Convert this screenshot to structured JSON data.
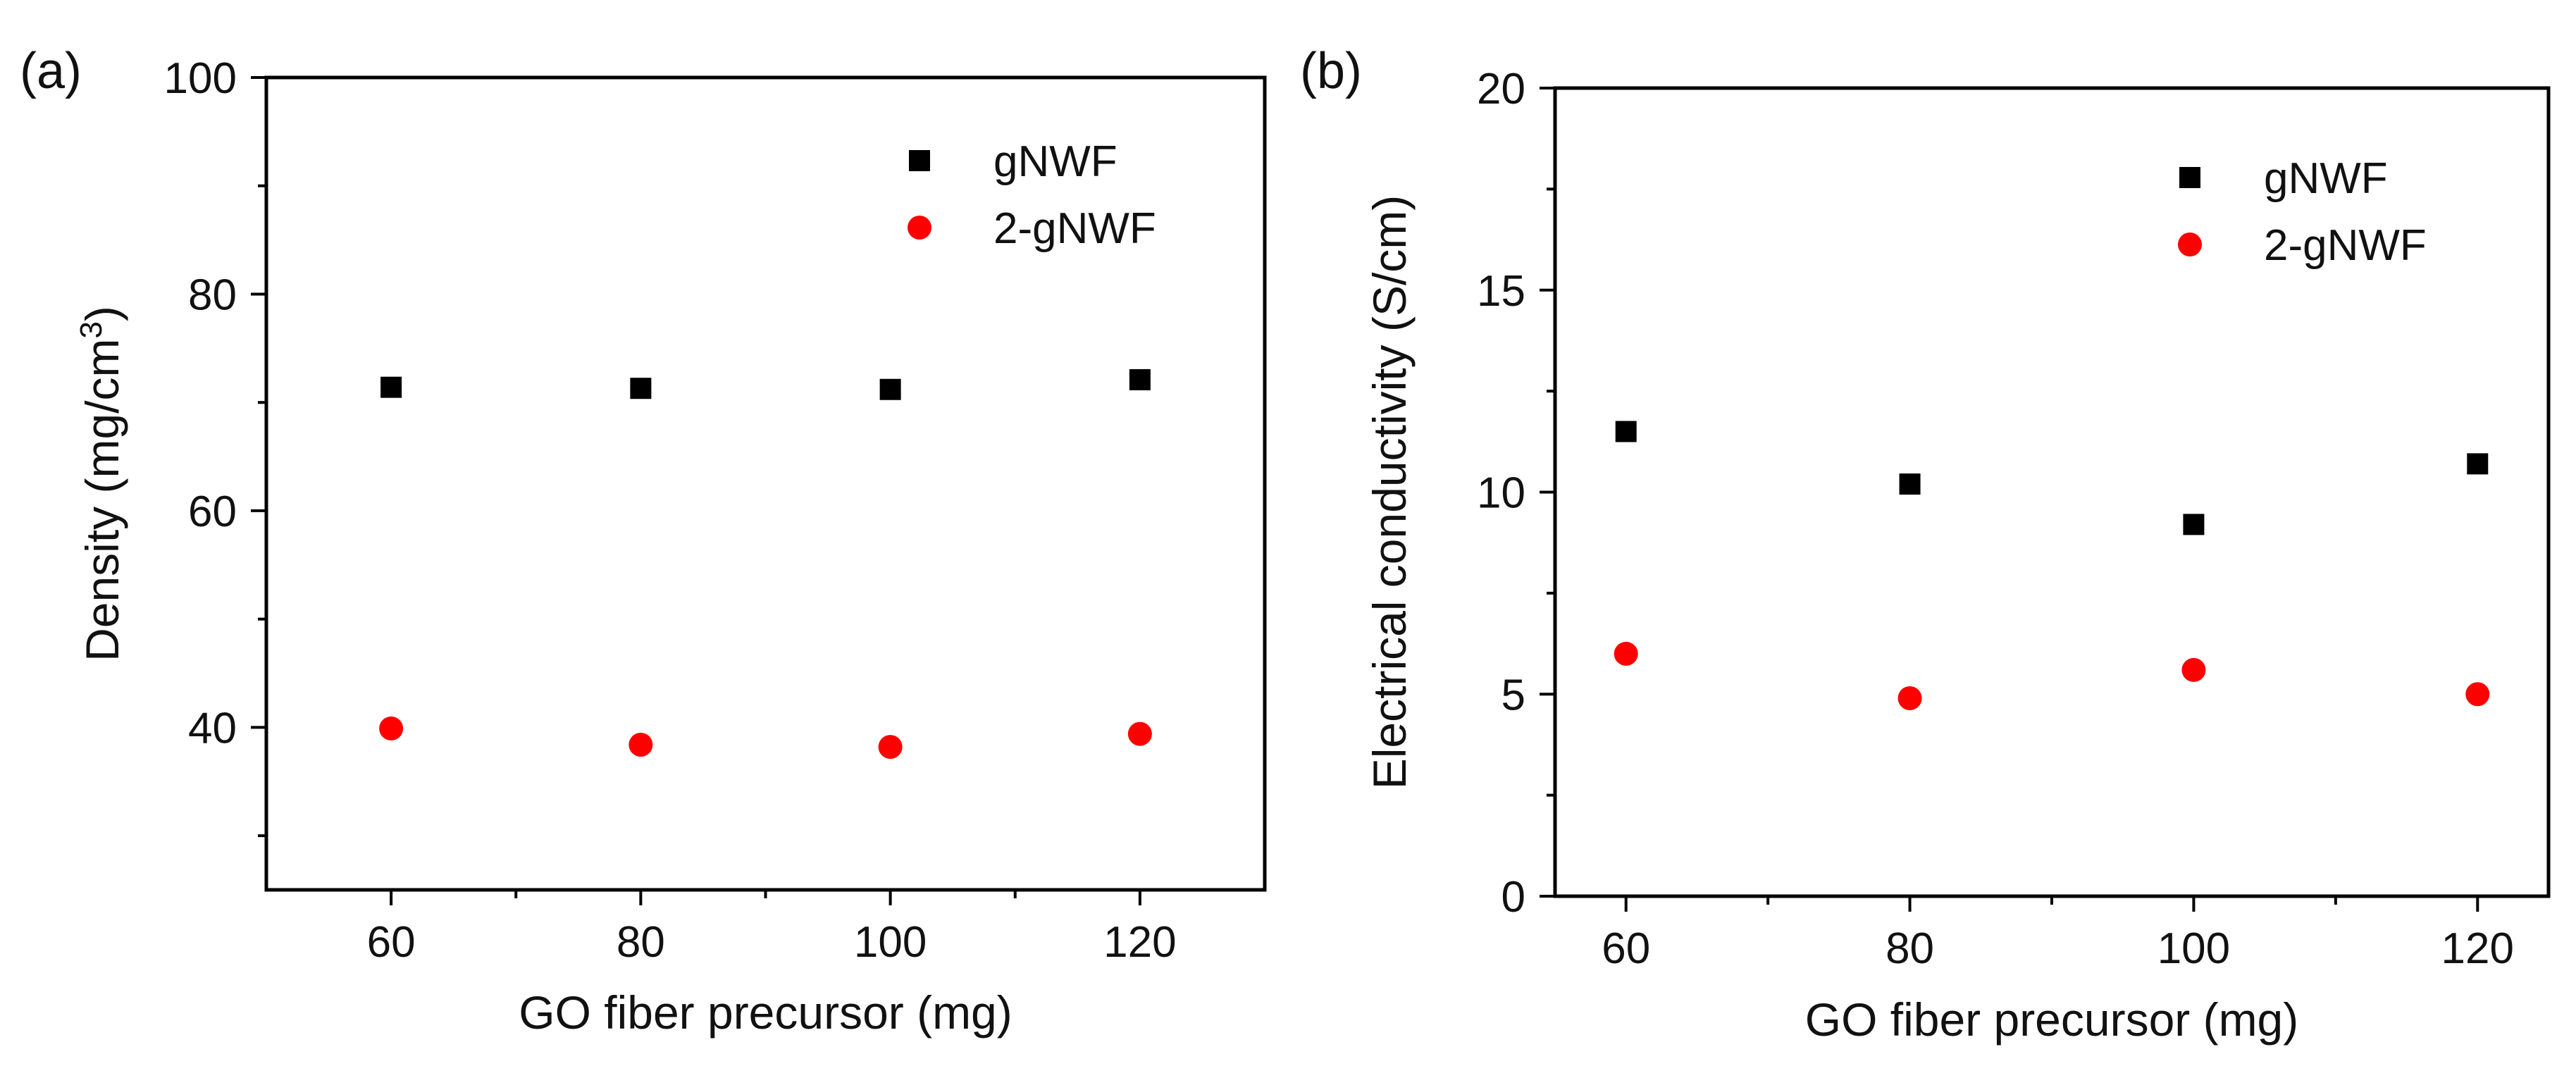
{
  "chart_data": [
    {
      "panel_label": "(a)",
      "type": "scatter",
      "xlabel": "GO fiber precursor (mg)",
      "ylabel_main": "Density (mg/cm",
      "ylabel_sup": "3",
      "ylabel_close": ")",
      "xlim": [
        50,
        130
      ],
      "ylim": [
        25,
        100
      ],
      "xticks": [
        60,
        80,
        100,
        120
      ],
      "xtick_labels": [
        "60",
        "80",
        "100",
        "120"
      ],
      "xminor": [
        50,
        70,
        90,
        110,
        130
      ],
      "yticks": [
        40,
        60,
        80,
        100
      ],
      "ytick_labels": [
        "40",
        "60",
        "80",
        "100"
      ],
      "yminor": [
        30,
        50,
        70,
        90
      ],
      "legend_position": "top-right",
      "series": [
        {
          "name": "gNWF",
          "marker": "square",
          "color": "#000000",
          "x": [
            60,
            80,
            100,
            120
          ],
          "y": [
            71.4,
            71.3,
            71.2,
            72.1
          ]
        },
        {
          "name": "2-gNWF",
          "marker": "circle",
          "color": "#ff0000",
          "x": [
            60,
            80,
            100,
            120
          ],
          "y": [
            39.9,
            38.4,
            38.2,
            39.4
          ]
        }
      ]
    },
    {
      "panel_label": "(b)",
      "type": "scatter",
      "xlabel": "GO fiber precursor (mg)",
      "ylabel_main": "Electrical conductivity (S/cm)",
      "ylabel_sup": "",
      "ylabel_close": "",
      "xlim": [
        55,
        125
      ],
      "ylim": [
        0,
        20
      ],
      "xticks": [
        60,
        80,
        100,
        120
      ],
      "xtick_labels": [
        "60",
        "80",
        "100",
        "120"
      ],
      "xminor": [
        70,
        90,
        110
      ],
      "yticks": [
        0,
        5,
        10,
        15,
        20
      ],
      "ytick_labels": [
        "0",
        "5",
        "10",
        "15",
        "20"
      ],
      "yminor": [
        2.5,
        7.5,
        12.5,
        17.5
      ],
      "legend_position": "top-right",
      "series": [
        {
          "name": "gNWF",
          "marker": "square",
          "color": "#000000",
          "x": [
            60,
            80,
            100,
            120
          ],
          "y": [
            11.5,
            10.2,
            9.2,
            10.7
          ]
        },
        {
          "name": "2-gNWF",
          "marker": "circle",
          "color": "#ff0000",
          "x": [
            60,
            80,
            100,
            120
          ],
          "y": [
            6.0,
            4.9,
            5.6,
            5.0
          ]
        }
      ]
    }
  ]
}
